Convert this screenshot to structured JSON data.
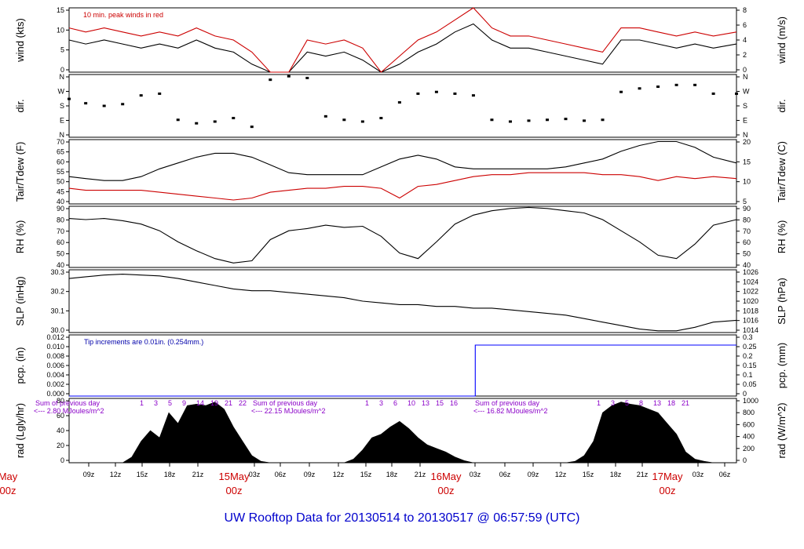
{
  "chart_data": {
    "type": "line",
    "title": "UW Rooftop Data for 20130514  to  20130517 @ 06:57:59  (UTC)",
    "x_hour_ticks": [
      "09z",
      "12z",
      "15z",
      "18z",
      "21z",
      "03z",
      "06z",
      "09z",
      "12z",
      "15z",
      "18z",
      "21z",
      "03z",
      "06z",
      "09z",
      "12z",
      "15z",
      "18z",
      "21z",
      "03z",
      "06z"
    ],
    "x_day_ticks": [
      {
        "date": "May",
        "hour": "00z"
      },
      {
        "date": "15May",
        "hour": "00z"
      },
      {
        "date": "16May",
        "hour": "00z"
      },
      {
        "date": "17May",
        "hour": "00z"
      }
    ],
    "x_range_hours": [
      6.2,
      78.5
    ],
    "panels": [
      {
        "id": "wind",
        "ylabel_left": "wind (kts)",
        "ylabel_right": "wind (m/s)",
        "left_ticks": [
          "0",
          "5",
          "10",
          "15"
        ],
        "right_ticks": [
          "0",
          "2",
          "4",
          "6",
          "8"
        ],
        "ylim": [
          0,
          16
        ],
        "annotation": "10 min. peak winds in red",
        "series": [
          {
            "name": "wind",
            "color": "#000000",
            "x": [
              6.2,
              8,
              10,
              12,
              14,
              16,
              18,
              20,
              22,
              24,
              26,
              28,
              30,
              32,
              34,
              36,
              38,
              40,
              42,
              44,
              46,
              48,
              50,
              52,
              54,
              56,
              58,
              60,
              62,
              64,
              66,
              68,
              70,
              72,
              74,
              76,
              78.5
            ],
            "y": [
              8,
              7,
              8,
              7,
              6,
              7,
              6,
              8,
              6,
              5,
              2,
              0,
              0,
              5,
              4,
              5,
              3,
              0,
              2,
              5,
              7,
              10,
              12,
              8,
              6,
              6,
              5,
              4,
              3,
              2,
              8,
              8,
              7,
              6,
              7,
              6,
              7
            ]
          },
          {
            "name": "peak",
            "color": "#cc0000",
            "x": [
              6.2,
              8,
              10,
              12,
              14,
              16,
              18,
              20,
              22,
              24,
              26,
              28,
              30,
              32,
              34,
              36,
              38,
              40,
              42,
              44,
              46,
              48,
              50,
              52,
              54,
              56,
              58,
              60,
              62,
              64,
              66,
              68,
              70,
              72,
              74,
              76,
              78.5
            ],
            "y": [
              11,
              10,
              11,
              10,
              9,
              10,
              9,
              11,
              9,
              8,
              5,
              0,
              0,
              8,
              7,
              8,
              6,
              0,
              4,
              8,
              10,
              13,
              16,
              11,
              9,
              9,
              8,
              7,
              6,
              5,
              11,
              11,
              10,
              9,
              10,
              9,
              10
            ]
          }
        ]
      },
      {
        "id": "dir",
        "ylabel_left": "dir.",
        "ylabel_right": "dir.",
        "left_ticks": [
          "N",
          "E",
          "S",
          "W",
          "N"
        ],
        "right_ticks": [
          "N",
          "E",
          "S",
          "W",
          "N"
        ],
        "ylim": [
          0,
          360
        ],
        "series": [
          {
            "name": "direction",
            "color": "#000000",
            "x": [
              6.2,
              8,
              10,
              12,
              14,
              16,
              18,
              20,
              22,
              24,
              26,
              28,
              30,
              32,
              34,
              36,
              38,
              40,
              42,
              44,
              46,
              48,
              50,
              52,
              54,
              56,
              58,
              60,
              62,
              64,
              66,
              68,
              70,
              72,
              74,
              76,
              78.5
            ],
            "y": [
              220,
              195,
              180,
              190,
              240,
              250,
              100,
              80,
              90,
              110,
              60,
              330,
              350,
              340,
              120,
              100,
              90,
              110,
              200,
              250,
              260,
              250,
              240,
              100,
              90,
              95,
              100,
              105,
              95,
              100,
              260,
              280,
              290,
              300,
              300,
              250,
              250
            ]
          }
        ]
      },
      {
        "id": "temp",
        "ylabel_left": "Tair/Tdew (F)",
        "ylabel_right": "Tair/Tdew (C)",
        "left_ticks": [
          "40",
          "45",
          "50",
          "55",
          "60",
          "65",
          "70"
        ],
        "right_ticks": [
          "5",
          "10",
          "15",
          "20"
        ],
        "ylim": [
          37,
          70
        ],
        "series": [
          {
            "name": "Tair",
            "color": "#000000",
            "x": [
              6.2,
              8,
              10,
              12,
              14,
              16,
              18,
              20,
              22,
              24,
              26,
              28,
              30,
              32,
              34,
              36,
              38,
              40,
              42,
              44,
              46,
              48,
              50,
              52,
              54,
              56,
              58,
              60,
              62,
              64,
              66,
              68,
              70,
              72,
              74,
              76,
              78.5
            ],
            "y": [
              51,
              50,
              49,
              49,
              51,
              55,
              58,
              61,
              63,
              63,
              61,
              57,
              53,
              52,
              52,
              52,
              52,
              56,
              60,
              62,
              60,
              56,
              55,
              55,
              55,
              55,
              55,
              56,
              58,
              60,
              64,
              67,
              69,
              69,
              66,
              61,
              58
            ]
          },
          {
            "name": "Tdew",
            "color": "#cc0000",
            "x": [
              6.2,
              8,
              10,
              12,
              14,
              16,
              18,
              20,
              22,
              24,
              26,
              28,
              30,
              32,
              34,
              36,
              38,
              40,
              42,
              44,
              46,
              48,
              50,
              52,
              54,
              56,
              58,
              60,
              62,
              64,
              66,
              68,
              70,
              72,
              74,
              76,
              78.5
            ],
            "y": [
              45,
              44,
              44,
              44,
              44,
              43,
              42,
              41,
              40,
              39,
              40,
              43,
              44,
              45,
              45,
              46,
              46,
              45,
              40,
              46,
              47,
              49,
              51,
              52,
              52,
              53,
              53,
              53,
              53,
              52,
              52,
              51,
              49,
              51,
              50,
              51,
              50
            ]
          }
        ]
      },
      {
        "id": "rh",
        "ylabel_left": "RH (%)",
        "ylabel_right": "RH (%)",
        "left_ticks": [
          "40",
          "50",
          "60",
          "70",
          "80",
          "90"
        ],
        "right_ticks": [
          "40",
          "50",
          "60",
          "70",
          "80",
          "90"
        ],
        "ylim": [
          37,
          92
        ],
        "series": [
          {
            "name": "RH",
            "color": "#000000",
            "x": [
              6.2,
              8,
              10,
              12,
              14,
              16,
              18,
              20,
              22,
              24,
              26,
              28,
              30,
              32,
              34,
              36,
              38,
              40,
              42,
              44,
              46,
              48,
              50,
              52,
              54,
              56,
              58,
              60,
              62,
              64,
              66,
              68,
              70,
              72,
              74,
              76,
              78.5
            ],
            "y": [
              81,
              80,
              81,
              79,
              76,
              70,
              60,
              52,
              45,
              41,
              43,
              62,
              70,
              72,
              75,
              73,
              74,
              65,
              50,
              45,
              60,
              76,
              84,
              88,
              90,
              91,
              90,
              88,
              86,
              80,
              70,
              60,
              48,
              45,
              58,
              75,
              80
            ]
          }
        ]
      },
      {
        "id": "slp",
        "ylabel_left": "SLP (inHg)",
        "ylabel_right": "SLP (hPa)",
        "left_ticks": [
          "30.0",
          "30.1",
          "30.2",
          "30.3"
        ],
        "right_ticks": [
          "1014",
          "1016",
          "1018",
          "1020",
          "1022",
          "1024",
          "1026"
        ],
        "ylim": [
          29.95,
          30.31
        ],
        "series": [
          {
            "name": "SLP",
            "color": "#000000",
            "x": [
              6.2,
              8,
              10,
              12,
              14,
              16,
              18,
              20,
              22,
              24,
              26,
              28,
              30,
              32,
              34,
              36,
              38,
              40,
              42,
              44,
              46,
              48,
              50,
              52,
              54,
              56,
              58,
              60,
              62,
              64,
              66,
              68,
              70,
              72,
              74,
              76,
              78.5
            ],
            "y": [
              30.26,
              30.27,
              30.28,
              30.285,
              30.28,
              30.275,
              30.26,
              30.24,
              30.22,
              30.2,
              30.19,
              30.19,
              30.18,
              30.17,
              30.16,
              30.15,
              30.13,
              30.12,
              30.11,
              30.11,
              30.1,
              30.1,
              30.09,
              30.09,
              30.08,
              30.07,
              30.06,
              30.05,
              30.03,
              30.01,
              29.99,
              29.97,
              29.96,
              29.96,
              29.98,
              30.01,
              30.02
            ]
          }
        ]
      },
      {
        "id": "pcp",
        "ylabel_left": "pcp. (in)",
        "ylabel_right": "pcp. (mm)",
        "left_ticks": [
          "0.000",
          "0.002",
          "0.004",
          "0.006",
          "0.008",
          "0.010",
          "0.012"
        ],
        "right_ticks": [
          "0",
          "0.05",
          "0.1",
          "0.15",
          "0.2",
          "0.25",
          "0.3"
        ],
        "ylim": [
          0,
          0.012
        ],
        "annotation": "Tip increments are 0.01in. (0.254mm.)",
        "series": [
          {
            "name": "pcp",
            "color": "#0000ff",
            "x": [
              6.2,
              50.2,
              50.2,
              78.5
            ],
            "y": [
              0,
              0,
              0.01,
              0.01
            ]
          }
        ]
      },
      {
        "id": "rad",
        "ylabel_left": "rad (Lgly/hr)",
        "ylabel_right": "rad (W/m^2)",
        "left_ticks": [
          "0",
          "20",
          "40",
          "60",
          "80"
        ],
        "right_ticks": [
          "0",
          "200",
          "400",
          "600",
          "800",
          "1000"
        ],
        "ylim": [
          0,
          90
        ],
        "daily_sums": [
          "Sum of previous day <--- 2.80 MJoules/m^2",
          "Sum of previous day <--- 22.15 MJoules/m^2",
          "Sum of previous day <--- 16.82 MJoules/m^2"
        ],
        "hour_marks": [
          [
            "1",
            "3",
            "5",
            "9",
            "14",
            "19",
            "21",
            "22"
          ],
          [
            "1",
            "3",
            "6",
            "10",
            "13",
            "15",
            "16"
          ],
          [
            "1",
            "3",
            "5",
            "8",
            "13",
            "18",
            "21"
          ]
        ],
        "series": [
          {
            "name": "rad",
            "color": "#000000",
            "x": [
              6.2,
              8,
              10,
              12,
              13,
              14,
              15,
              16,
              17,
              18,
              19,
              20,
              21,
              22,
              23,
              24,
              25,
              26,
              27,
              28,
              30,
              34,
              36,
              37,
              38,
              39,
              40,
              41,
              42,
              43,
              44,
              45,
              46,
              47,
              48,
              49,
              50,
              51,
              52,
              54,
              58,
              60,
              61,
              62,
              63,
              64,
              65,
              66,
              67,
              68,
              69,
              70,
              71,
              72,
              73,
              74,
              75,
              76,
              77,
              78.5
            ],
            "y": [
              0,
              0,
              0,
              0,
              8,
              30,
              45,
              35,
              70,
              55,
              80,
              82,
              80,
              85,
              75,
              50,
              30,
              10,
              2,
              0,
              0,
              0,
              0,
              5,
              18,
              35,
              40,
              50,
              58,
              48,
              35,
              25,
              20,
              15,
              8,
              3,
              0,
              0,
              0,
              0,
              0,
              0,
              2,
              10,
              30,
              70,
              80,
              85,
              82,
              80,
              75,
              70,
              55,
              40,
              15,
              5,
              2,
              0,
              0,
              0
            ]
          }
        ]
      }
    ]
  }
}
